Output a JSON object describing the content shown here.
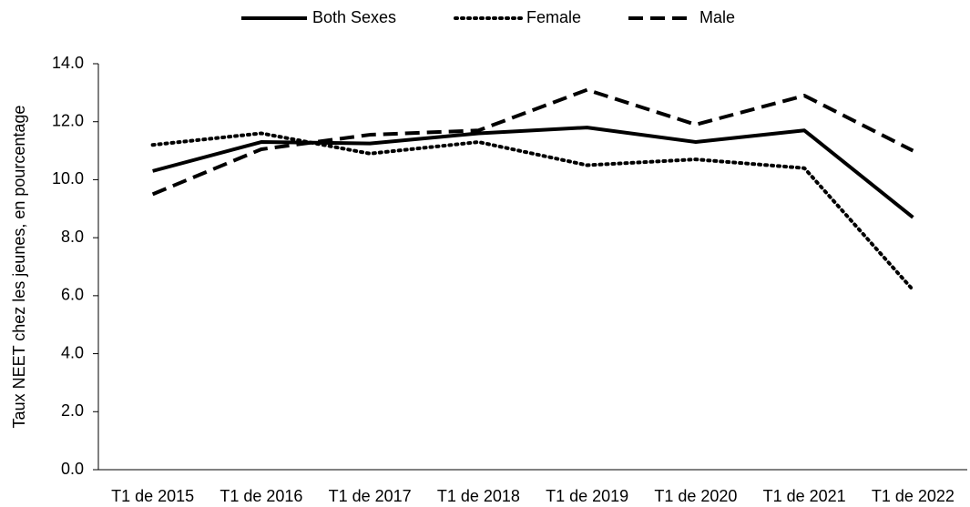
{
  "chart_data": {
    "type": "line",
    "y_label": "Taux NEET  chez les jeunes, en pourcentage",
    "categories": [
      "T1 de 2015",
      "T1 de 2016",
      "T1 de 2017",
      "T1 de 2018",
      "T1 de 2019",
      "T1 de 2020",
      "T1 de 2021",
      "T1 de 2022"
    ],
    "series": [
      {
        "name": "Both Sexes",
        "color": "#000000",
        "dash": "solid",
        "values": [
          10.3,
          11.3,
          11.25,
          11.6,
          11.8,
          11.3,
          11.7,
          8.7
        ]
      },
      {
        "name": "Female",
        "color": "#000000",
        "dash": "dotted",
        "values": [
          11.2,
          11.6,
          10.9,
          11.3,
          10.5,
          10.7,
          10.4,
          6.2
        ]
      },
      {
        "name": "Male",
        "color": "#000000",
        "dash": "dashed",
        "values": [
          9.5,
          11.05,
          11.55,
          11.7,
          13.1,
          11.9,
          12.9,
          11.0
        ]
      }
    ],
    "ylim": [
      0,
      14
    ],
    "yticks": [
      {
        "value": 0,
        "label": "0.0"
      },
      {
        "value": 2,
        "label": "2.0"
      },
      {
        "value": 4,
        "label": "4.0"
      },
      {
        "value": 6,
        "label": "6.0"
      },
      {
        "value": 8,
        "label": "8.0"
      },
      {
        "value": 10,
        "label": "10.0"
      },
      {
        "value": 12,
        "label": "12.0"
      },
      {
        "value": 14,
        "label": "14.0"
      }
    ],
    "grid": false,
    "legend": "top"
  }
}
